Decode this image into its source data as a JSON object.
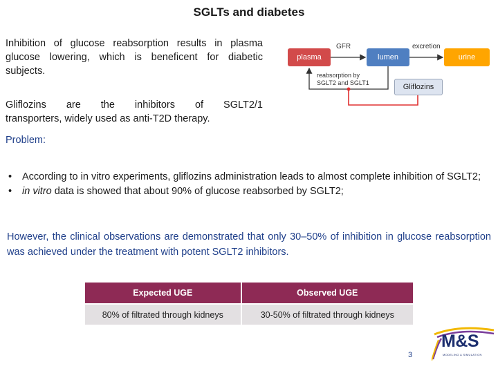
{
  "title": "SGLTs and diabetes",
  "intro": "Inhibition of glucose reabsorption results in plasma glucose lowering, which is beneficent for diabetic subjects.",
  "gliflozins_line1": "Gliflozins are the inhibitors of SGLT2/1",
  "gliflozins_line2": "transporters, widely used as anti-T2D therapy.",
  "problem_label": "Problem:",
  "bullets": [
    {
      "text": "According to in vitro experiments, gliflozins administration leads to almost complete inhibition of SGLT2;"
    },
    {
      "italic": "in vitro",
      "text": " data is showed that about 90% of glucose reabsorbed by SGLT2;"
    }
  ],
  "however": "However, the clinical observations are demonstrated that only 30–50% of inhibition in glucose reabsorption was achieved under the treatment with potent SGLT2 inhibitors.",
  "diagram": {
    "plasma": "plasma",
    "lumen": "lumen",
    "urine": "urine",
    "gfr": "GFR",
    "excretion": "excretion",
    "reabsorption_line1": "reabsorption by",
    "reabsorption_line2": "SGLT2 and SGLT1",
    "gliflozins": "Gliflozins",
    "colors": {
      "plasma": "#d24a4a",
      "lumen": "#4f7fc1",
      "urine": "#ffa500",
      "inhibit": "#e03030"
    }
  },
  "table": {
    "headers": [
      "Expected UGE",
      "Observed UGE"
    ],
    "rows": [
      [
        "80% of filtrated through kidneys",
        "30-50% of filtrated through kidneys"
      ]
    ],
    "header_color": "#8e2a55"
  },
  "page_number": "3",
  "logo": {
    "text": "M&S",
    "tagline": "MODELING & SIMULATION"
  }
}
